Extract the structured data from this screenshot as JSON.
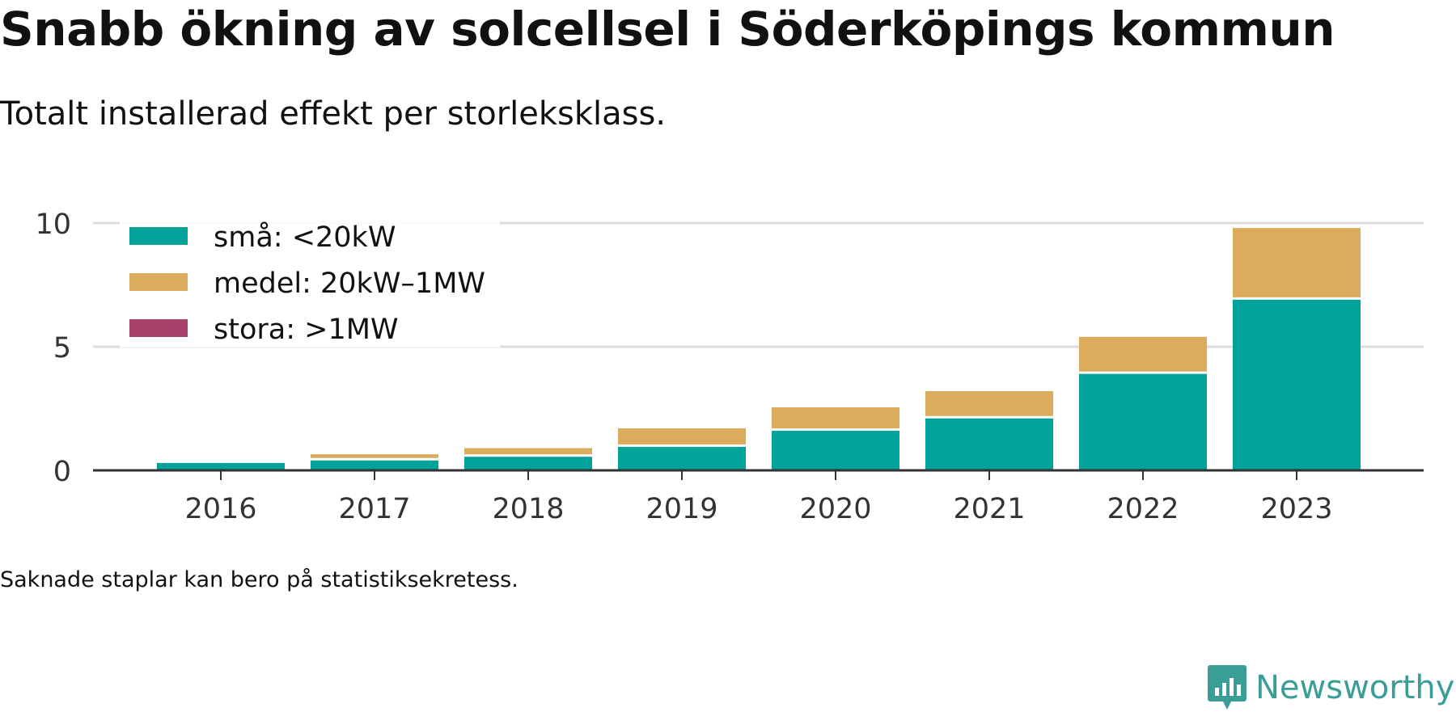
{
  "header": {
    "title": "Snabb ökning av solcellsel i Söderköpings kommun",
    "subtitle": "Totalt installerad effekt per storleksklass."
  },
  "footer": {
    "note": "Saknade staplar kan bero på statistiksekretess.",
    "brand": "Newsworthy"
  },
  "colors": {
    "small": "#00a39a",
    "medium": "#dbac5b",
    "large": "#a8416a",
    "grid": "#dddddd",
    "axis": "#333333",
    "brand": "#3a9e96"
  },
  "chart_data": {
    "type": "bar",
    "stacked": true,
    "categories": [
      "2016",
      "2017",
      "2018",
      "2019",
      "2020",
      "2021",
      "2022",
      "2023"
    ],
    "series": [
      {
        "name": "små: <20kW",
        "color": "#00a39a",
        "values": [
          0.3,
          0.4,
          0.55,
          0.95,
          1.6,
          2.1,
          3.9,
          6.9
        ]
      },
      {
        "name": "medel: 20kW–1MW",
        "color": "#dbac5b",
        "values": [
          0.0,
          0.25,
          0.35,
          0.75,
          0.95,
          1.1,
          1.5,
          2.9
        ]
      },
      {
        "name": "stora: >1MW",
        "color": "#a8416a",
        "values": [
          0,
          0,
          0,
          0,
          0,
          0,
          0,
          0
        ]
      }
    ],
    "yticks": [
      0,
      5,
      10
    ],
    "ylim": [
      0,
      10
    ],
    "grid": true,
    "legend_position": "top-left",
    "xlabel": "",
    "ylabel": ""
  }
}
